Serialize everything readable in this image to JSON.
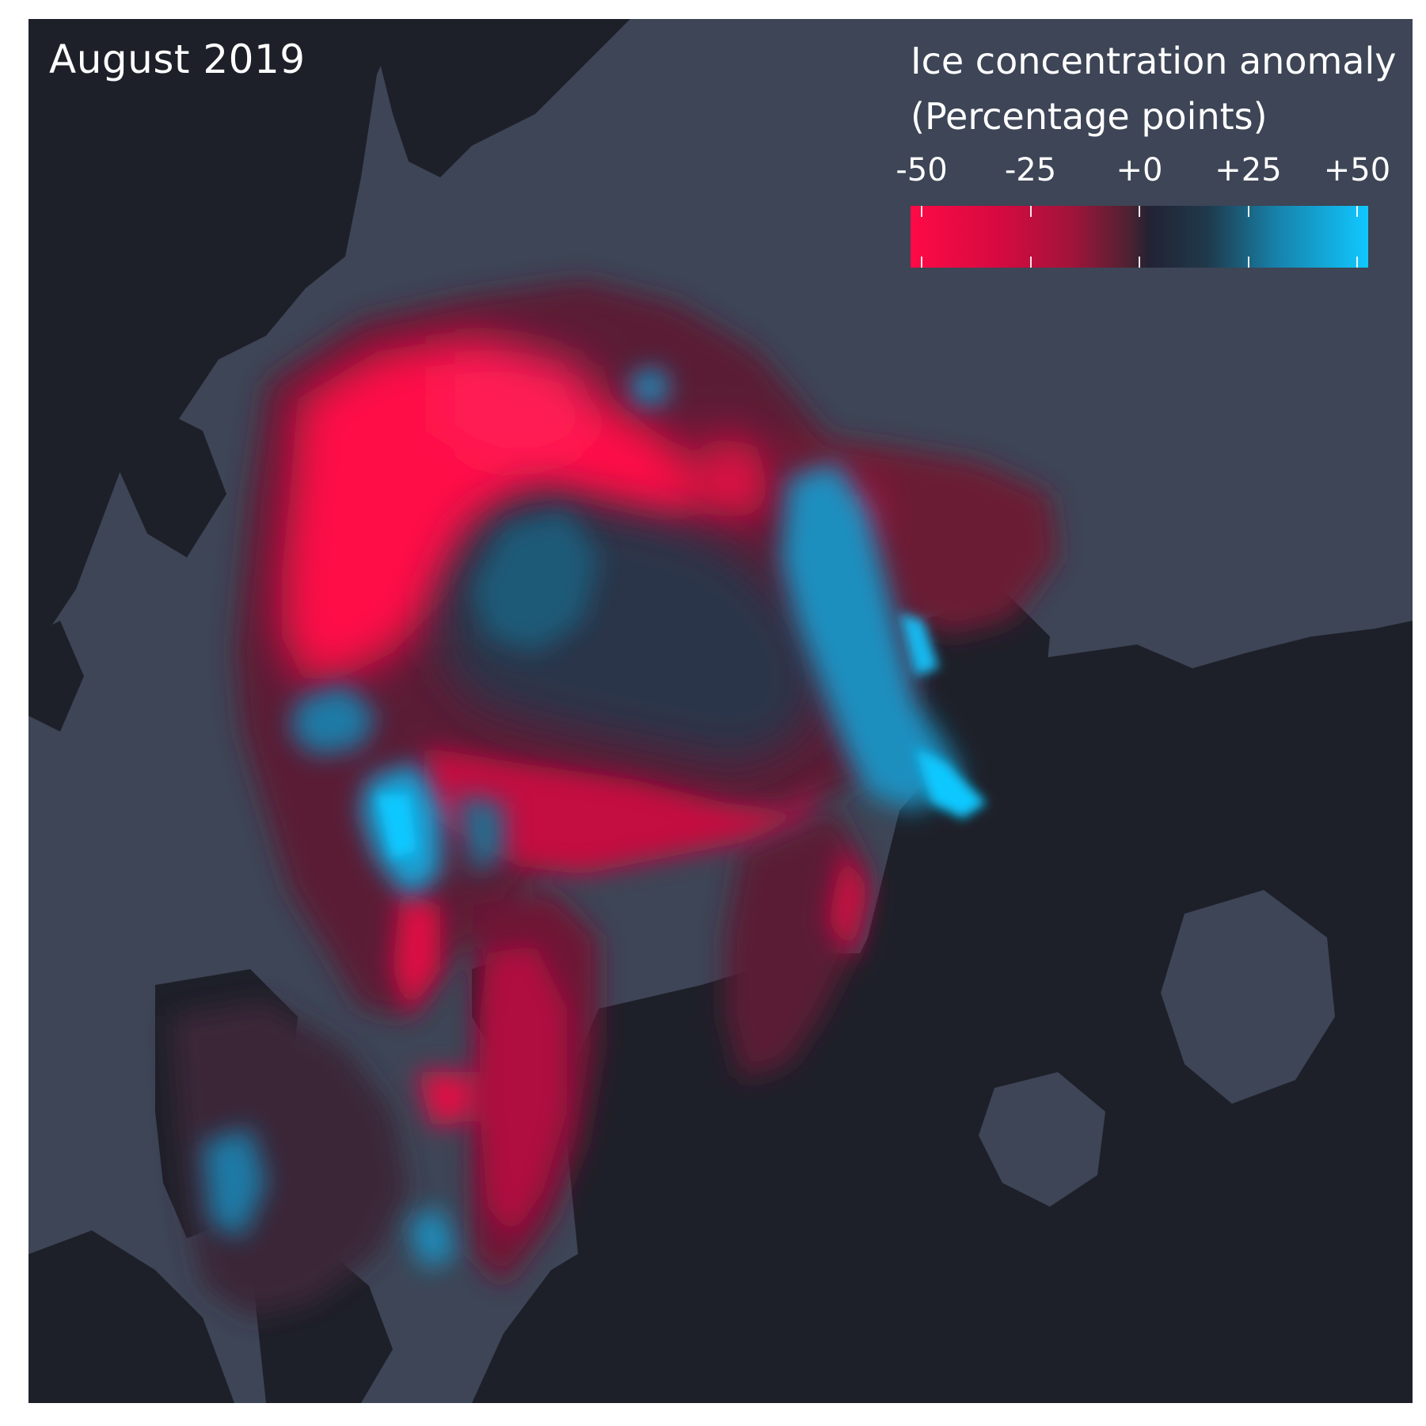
{
  "map": {
    "title": "August 2019",
    "colors": {
      "ocean": "#3d4556",
      "land": "#1e2029",
      "strong_loss": "#ff0a46",
      "moderate_loss": "#a2143a",
      "no_change": "#222233",
      "moderate_gain": "#1d6e8f",
      "strong_gain": "#10c8ff"
    }
  },
  "legend": {
    "title_line1": "Ice concentration anomaly",
    "title_line2": "(Percentage points)",
    "ticks": [
      "-50",
      "-25",
      "+0",
      "+25",
      "+50"
    ],
    "range": [
      -50,
      50
    ]
  }
}
